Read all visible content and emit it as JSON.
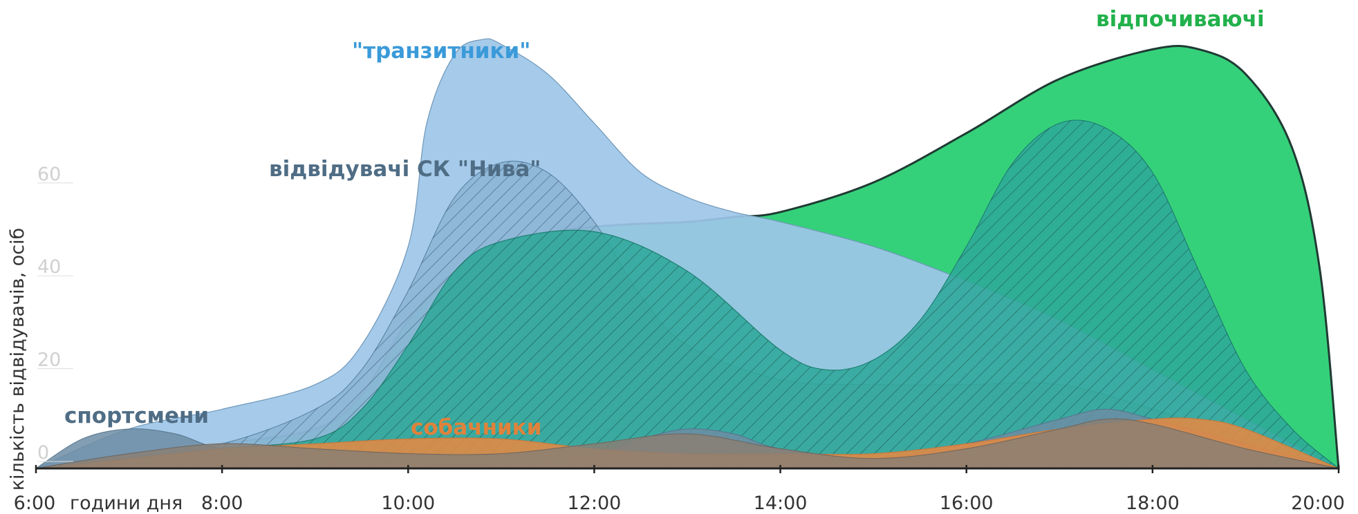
{
  "chart_data": {
    "type": "area",
    "xlabel": "години дня",
    "ylabel": "кількість відвідувачів, осіб",
    "x_ticks": [
      "6:00",
      "8:00",
      "10:00",
      "12:00",
      "14:00",
      "16:00",
      "18:00",
      "20:00"
    ],
    "y_ticks": [
      0,
      20,
      40,
      60
    ],
    "xlim": [
      6,
      20
    ],
    "ylim": [
      0,
      95
    ],
    "grid": false,
    "legend": "none",
    "colors": {
      "vidpochyvayuchi": "#35d17a",
      "tranzytnyky": "#9dc6e8",
      "nyva": "#7ea9c9",
      "teal": "#2fa99a",
      "sportsmeny": "#6d8da5",
      "sobachnyky": "#e08a45",
      "ground": "#8a7f74"
    },
    "series": [
      {
        "name": "відпочиваючі",
        "color": "#35d17a",
        "x": [
          6,
          7,
          8,
          9,
          9.5,
          10,
          10.5,
          11,
          12,
          13,
          13.5,
          14,
          15,
          16,
          17,
          18,
          18.5,
          19,
          19.5,
          19.8,
          20
        ],
        "values": [
          0,
          3,
          5,
          8,
          15,
          30,
          40,
          46,
          49,
          50,
          51,
          52,
          58,
          68,
          79,
          85,
          85,
          80,
          65,
          40,
          0
        ]
      },
      {
        "name": "\"транзитники\"",
        "color": "#9dc6e8",
        "x": [
          6,
          7,
          8,
          9,
          9.5,
          10,
          10.2,
          10.5,
          10.8,
          11,
          11.5,
          12,
          12.5,
          13,
          13.5,
          14,
          15,
          16,
          17,
          18,
          19,
          20
        ],
        "values": [
          0,
          8,
          12,
          17,
          25,
          45,
          70,
          84,
          87,
          86,
          80,
          70,
          60,
          55,
          52,
          50,
          45,
          38,
          30,
          20,
          10,
          0
        ]
      },
      {
        "name": "відвідувачі СК \"Нива\"",
        "color": "#7ea9c9",
        "x": [
          6,
          7,
          8,
          9,
          9.5,
          10,
          10.5,
          11,
          11.5,
          12,
          12.5,
          13,
          14,
          15,
          16,
          17,
          18,
          19,
          20
        ],
        "values": [
          0,
          3,
          5,
          12,
          20,
          36,
          55,
          62,
          60,
          50,
          35,
          25,
          18,
          17,
          17,
          17,
          12,
          6,
          0
        ]
      },
      {
        "name": "",
        "color": "#2fa99a",
        "x": [
          6,
          7,
          8,
          9,
          9.5,
          10,
          10.5,
          11,
          12,
          13,
          14,
          14.5,
          15,
          15.5,
          16,
          16.5,
          17,
          17.5,
          18,
          18.5,
          19,
          19.5,
          20
        ],
        "values": [
          0,
          2,
          4,
          6,
          12,
          25,
          40,
          46,
          48,
          40,
          24,
          20,
          22,
          30,
          45,
          62,
          70,
          69,
          60,
          40,
          20,
          8,
          0
        ]
      },
      {
        "name": "спортсмени",
        "color": "#6d8da5",
        "x": [
          6,
          6.5,
          7,
          7.5,
          8,
          9,
          10,
          11,
          12,
          12.5,
          13,
          13.5,
          14,
          15,
          16,
          17,
          17.5,
          18,
          19,
          20
        ],
        "values": [
          0,
          6,
          8,
          7,
          4,
          2,
          1,
          1,
          3,
          6,
          8,
          7,
          4,
          2,
          5,
          10,
          12,
          10,
          5,
          0
        ]
      },
      {
        "name": "собачники",
        "color": "#e08a45",
        "x": [
          6,
          7,
          8,
          9,
          10,
          11,
          12,
          13,
          14,
          15,
          16,
          17,
          18,
          18.5,
          19,
          20
        ],
        "values": [
          0,
          2,
          4,
          5,
          6,
          6,
          4,
          3,
          3,
          3,
          5,
          8,
          10,
          10,
          8,
          0
        ]
      },
      {
        "name": "",
        "color": "#8a7f74",
        "x": [
          6,
          7,
          8,
          9,
          10,
          11,
          12,
          13,
          14,
          15,
          16,
          17,
          17.5,
          18,
          19,
          20
        ],
        "values": [
          0,
          3,
          5,
          4,
          3,
          3,
          5,
          7,
          4,
          2,
          4,
          8,
          10,
          9,
          4,
          0
        ]
      }
    ],
    "annotations": {
      "vidpochyvayuchi": "відпочиваючі",
      "tranzytnyky": "\"транзитники\"",
      "nyva": "відвідувачі СК \"Нива\"",
      "sportsmeny": "спортсмени",
      "sobachnyky": "собачники"
    }
  }
}
